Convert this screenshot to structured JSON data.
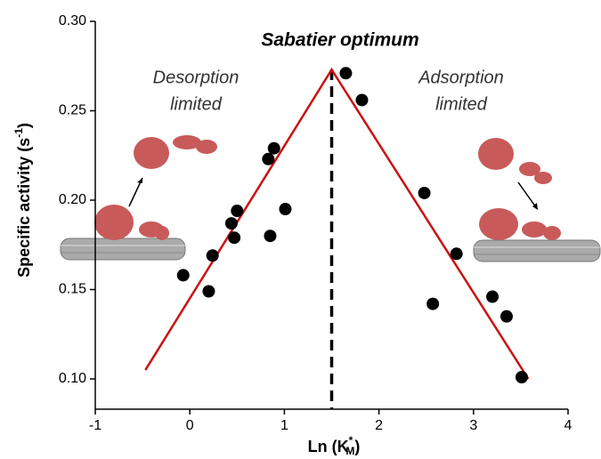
{
  "chart_data": {
    "type": "scatter",
    "title": "Sabatier optimum",
    "annotations": [
      [
        "Desorption",
        "limited"
      ],
      [
        "Adsorption",
        "limited"
      ]
    ],
    "x_label_parts": [
      "Ln (K",
      "*",
      "M",
      ")"
    ],
    "y_label_parts": [
      "Specific activity (s",
      "-1",
      ")"
    ],
    "xlim": [
      -1,
      4
    ],
    "ylim": [
      0.1,
      0.3
    ],
    "xticks": [
      -1,
      0,
      1,
      2,
      3,
      4
    ],
    "yticks": [
      {
        "value": 0.1,
        "label": "0.10"
      },
      0.15,
      {
        "value": 0.2,
        "label": "0.20"
      },
      0.25,
      {
        "value": 0.3,
        "label": "0.30"
      }
    ],
    "optimum_x": 1.5,
    "series": [
      {
        "type": "scatter",
        "color": "#000000",
        "x": [
          -0.07,
          0.2,
          0.24,
          0.44,
          0.5,
          0.47,
          0.83,
          0.89,
          0.85,
          1.01,
          1.65,
          1.82,
          2.48,
          2.57,
          2.82,
          3.2,
          3.35,
          3.51
        ],
        "values": [
          0.158,
          0.149,
          0.169,
          0.187,
          0.194,
          0.179,
          0.223,
          0.229,
          0.18,
          0.195,
          0.271,
          0.256,
          0.204,
          0.142,
          0.17,
          0.146,
          0.135,
          0.101
        ]
      },
      {
        "type": "line",
        "color": "#cc1111",
        "x": [
          -0.47,
          1.5,
          3.58
        ],
        "values": [
          0.105,
          0.273,
          0.1
        ]
      }
    ]
  }
}
